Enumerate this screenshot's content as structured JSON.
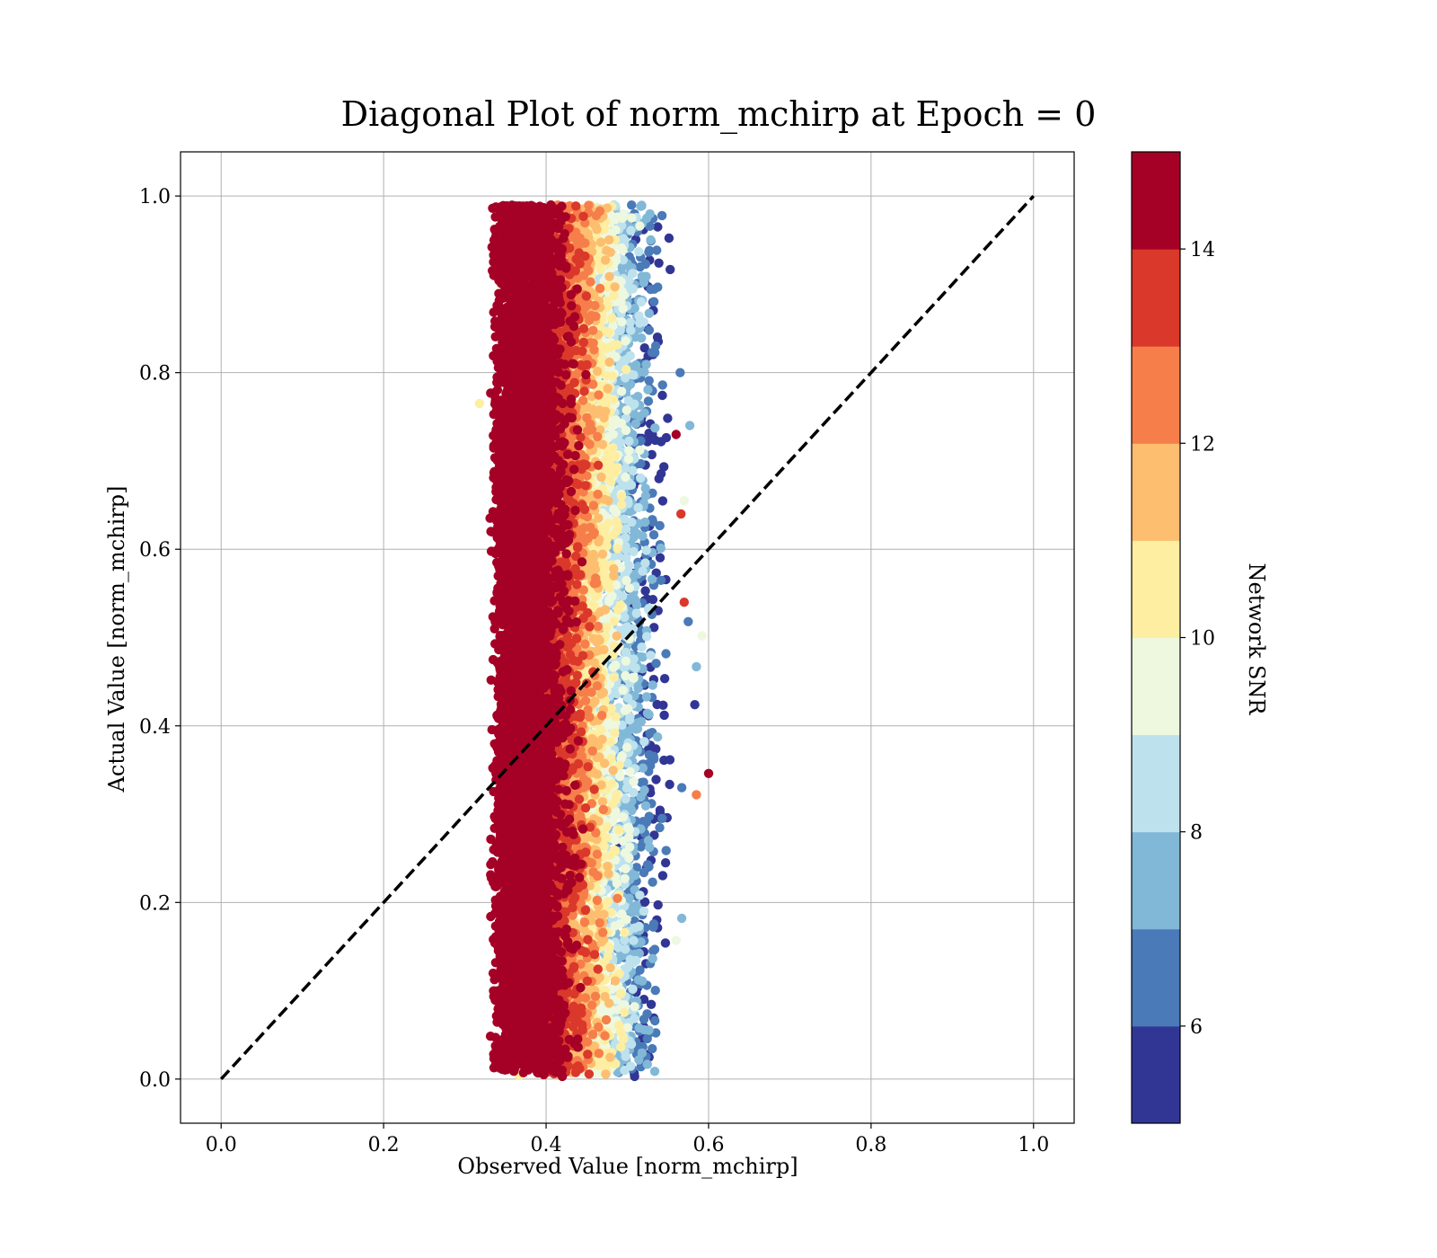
{
  "chart_data": {
    "type": "scatter",
    "title": "Diagonal Plot of norm_mchirp at Epoch = 0",
    "xlabel": "Observed Value [norm_mchirp]",
    "ylabel": "Actual Value [norm_mchirp]",
    "xlim": [
      -0.05,
      1.05
    ],
    "ylim": [
      -0.05,
      1.05
    ],
    "xticks": [
      "0.0",
      "0.2",
      "0.4",
      "0.6",
      "0.8",
      "1.0"
    ],
    "yticks": [
      "0.0",
      "0.2",
      "0.4",
      "0.6",
      "0.8",
      "1.0"
    ],
    "grid": true,
    "reference_line": {
      "style": "dashed",
      "color": "#000000",
      "from": [
        0,
        0
      ],
      "to": [
        1,
        1
      ]
    },
    "colorbar": {
      "label": "Network SNR",
      "range": [
        5,
        15
      ],
      "ticks": [
        "6",
        "8",
        "10",
        "12",
        "14"
      ],
      "bins": [
        {
          "from": 5,
          "to": 6,
          "color": "#313695"
        },
        {
          "from": 6,
          "to": 7,
          "color": "#4a7ab7"
        },
        {
          "from": 7,
          "to": 8,
          "color": "#82b8d7"
        },
        {
          "from": 8,
          "to": 9,
          "color": "#bde2ee"
        },
        {
          "from": 9,
          "to": 10,
          "color": "#eef8df"
        },
        {
          "from": 10,
          "to": 11,
          "color": "#feeea2"
        },
        {
          "from": 11,
          "to": 12,
          "color": "#fdbe70"
        },
        {
          "from": 12,
          "to": 13,
          "color": "#f67e4b"
        },
        {
          "from": 13,
          "to": 14,
          "color": "#da382a"
        },
        {
          "from": 14,
          "to": 15,
          "color": "#a50026"
        }
      ]
    },
    "series": [
      {
        "description_values": "points cluster with observed value mostly between 0.33 and 0.55 across actual values 0.0-1.0; high SNR (dark red) concentrated at observed 0.34-0.42, lower SNR toward observed 0.5-0.55",
        "outliers": [
          {
            "x": 0.318,
            "y": 0.765,
            "snr": 10.5
          },
          {
            "x": 0.577,
            "y": 0.74,
            "snr": 7.5
          },
          {
            "x": 0.56,
            "y": 0.73,
            "snr": 14.5
          },
          {
            "x": 0.565,
            "y": 0.8,
            "snr": 6.5
          },
          {
            "x": 0.57,
            "y": 0.655,
            "snr": 9.5
          },
          {
            "x": 0.566,
            "y": 0.64,
            "snr": 13.5
          },
          {
            "x": 0.57,
            "y": 0.54,
            "snr": 13.5
          },
          {
            "x": 0.575,
            "y": 0.518,
            "snr": 6.5
          },
          {
            "x": 0.592,
            "y": 0.502,
            "snr": 9.5
          },
          {
            "x": 0.585,
            "y": 0.467,
            "snr": 7.5
          },
          {
            "x": 0.583,
            "y": 0.424,
            "snr": 5.5
          },
          {
            "x": 0.6,
            "y": 0.346,
            "snr": 14.5
          },
          {
            "x": 0.585,
            "y": 0.322,
            "snr": 12.5
          },
          {
            "x": 0.567,
            "y": 0.33,
            "snr": 6.5
          },
          {
            "x": 0.567,
            "y": 0.182,
            "snr": 7.5
          },
          {
            "x": 0.56,
            "y": 0.157,
            "snr": 9.5
          },
          {
            "x": 0.367,
            "y": 0.004,
            "snr": 10.5
          },
          {
            "x": 0.42,
            "y": 0.003,
            "snr": 14.5
          },
          {
            "x": 0.509,
            "y": 0.003,
            "snr": 5.5
          }
        ]
      }
    ]
  }
}
